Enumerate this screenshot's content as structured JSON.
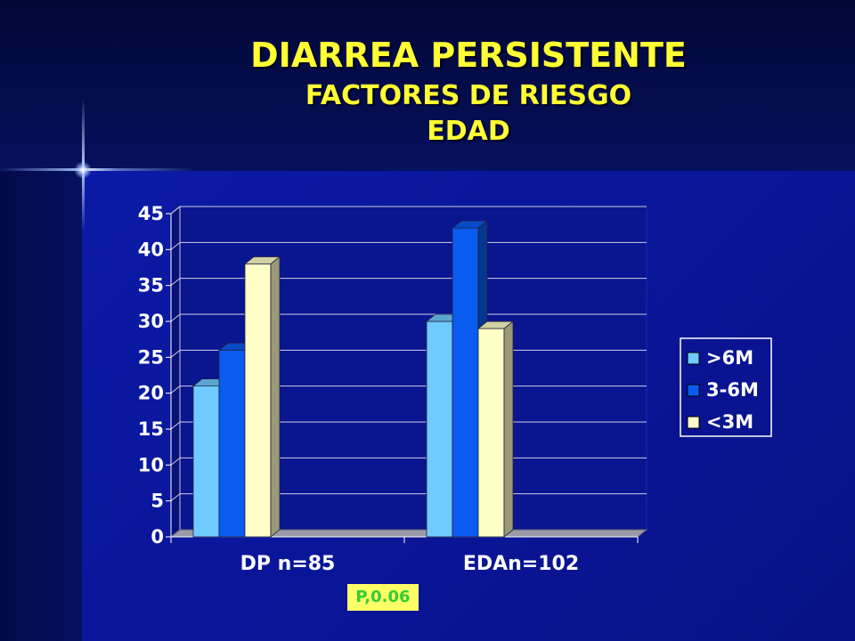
{
  "slide": {
    "title": "DIARREA PERSISTENTE",
    "subtitle": "FACTORES DE RIESGO",
    "subtitle2": "EDAD",
    "note": "P,0.06"
  },
  "colors": {
    "background": "#0a138f",
    "title": "#ffff33",
    "series_gt6m": "#6fcbff",
    "series_3_6m": "#0a5cf0",
    "series_lt3m": "#ffffc8",
    "note_bg": "#ffff66",
    "note_text": "#33cc33"
  },
  "chart_data": {
    "type": "bar",
    "categories": [
      "DP n=85",
      "EDAn=102"
    ],
    "series": [
      {
        "name": ">6M",
        "values": [
          21,
          30
        ]
      },
      {
        "name": "3-6M",
        "values": [
          26,
          43
        ]
      },
      {
        "name": "<3M",
        "values": [
          38,
          29
        ]
      }
    ],
    "ylim": [
      0,
      45
    ],
    "yticks": [
      "0",
      "5",
      "10",
      "15",
      "20",
      "25",
      "30",
      "35",
      "40",
      "45"
    ],
    "grid": true,
    "legend": "right",
    "style": "3d-clustered-column"
  }
}
